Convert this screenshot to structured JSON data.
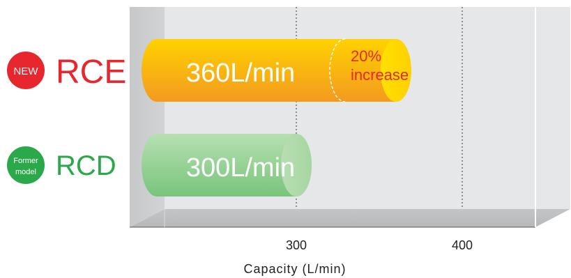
{
  "chart_data": {
    "type": "bar",
    "orientation": "horizontal",
    "style": "3d-cylinder",
    "title": "",
    "xlabel": "Capacity (L/min)",
    "ylabel": "",
    "xlim": [
      0,
      450
    ],
    "xticks": [
      0,
      300,
      400
    ],
    "grid": "dashed-vertical",
    "categories": [
      "RCE",
      "RCD"
    ],
    "values": [
      360,
      300
    ],
    "value_labels": [
      "360L/min",
      "300L/min"
    ],
    "badges": [
      {
        "category": "RCE",
        "text": "NEW",
        "color": "#e8262e"
      },
      {
        "category": "RCD",
        "line1": "Former",
        "line2": "model",
        "color": "#2aa84a"
      }
    ],
    "category_colors": {
      "RCE": "#e8262e",
      "RCD": "#2aa84a"
    },
    "bar_colors": {
      "RCE": "#f7a81a",
      "RCD": "#9cd39a"
    },
    "annotation": {
      "category": "RCE",
      "from": 300,
      "to": 360,
      "line1": "20%",
      "line2": "increase",
      "color": "#e8262e"
    }
  }
}
